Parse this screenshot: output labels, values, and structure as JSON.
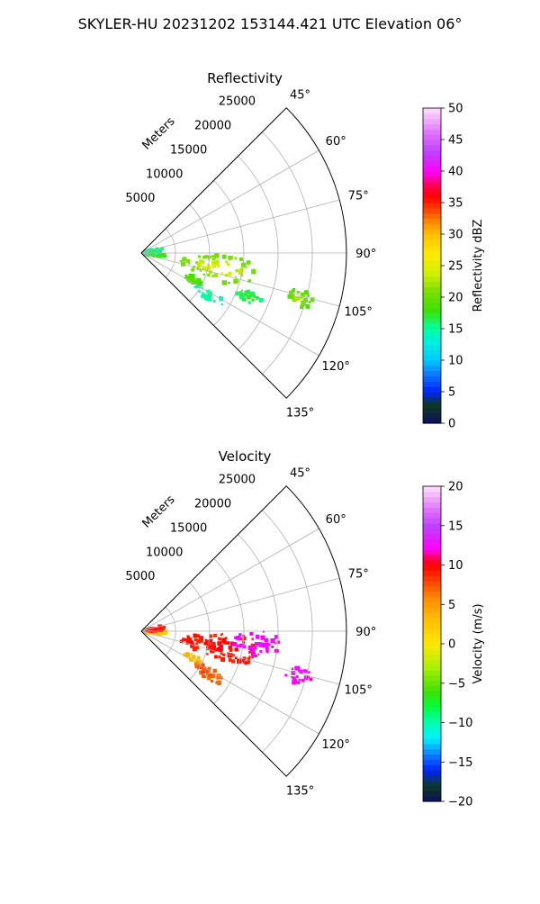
{
  "title": "SKYLER-HU  20231202  153144.421 UTC Elevation 06°",
  "chart_data": [
    {
      "type": "heatmap",
      "projection": "polar-sector",
      "title": "Reflectivity",
      "radial_axis_label": "Meters",
      "radial_ticks": [
        5000,
        10000,
        15000,
        20000,
        25000
      ],
      "radial_tick_labels": [
        "5000",
        "10000",
        "15000",
        "20000",
        "25000"
      ],
      "radial_range": [
        0,
        30000
      ],
      "angle_range_deg": [
        45,
        135
      ],
      "angle_ticks_deg": [
        45,
        60,
        75,
        90,
        105,
        120,
        135
      ],
      "angle_tick_labels": [
        "45°",
        "60°",
        "75°",
        "90°",
        "105°",
        "120°",
        "135°"
      ],
      "grid": true,
      "colorbar": {
        "label": "Reflectivity dBZ",
        "range": [
          0,
          50
        ],
        "ticks": [
          0,
          5,
          10,
          15,
          20,
          25,
          30,
          35,
          40,
          45,
          50
        ],
        "tick_labels": [
          "0",
          "5",
          "10",
          "15",
          "20",
          "25",
          "30",
          "35",
          "40",
          "45",
          "50"
        ],
        "colormap": [
          [
            0,
            "#0b0f5c"
          ],
          [
            3,
            "#0d3a22"
          ],
          [
            5,
            "#0022ff"
          ],
          [
            8,
            "#0f7fff"
          ],
          [
            10,
            "#00c8ff"
          ],
          [
            13,
            "#00f0e0"
          ],
          [
            15,
            "#00ffa0"
          ],
          [
            18,
            "#40e000"
          ],
          [
            21,
            "#7adf00"
          ],
          [
            24,
            "#d8f000"
          ],
          [
            27,
            "#ffe800"
          ],
          [
            30,
            "#ffc000"
          ],
          [
            32,
            "#ff8800"
          ],
          [
            34,
            "#ff4000"
          ],
          [
            36,
            "#ff0000"
          ],
          [
            38,
            "#ff0060"
          ],
          [
            40,
            "#ff00ff"
          ],
          [
            43,
            "#c040ff"
          ],
          [
            46,
            "#e070ff"
          ],
          [
            50,
            "#ffe0ff"
          ]
        ]
      },
      "echo_regions": [
        {
          "az_deg": 101,
          "range_m": 11500,
          "az_halfwidth_deg": 9,
          "range_halfwidth_m": 6000,
          "value": 20,
          "core_value": 26
        },
        {
          "az_deg": 106,
          "range_m": 24000,
          "az_halfwidth_deg": 3,
          "range_halfwidth_m": 2000,
          "value": 19,
          "core_value": 23
        },
        {
          "az_deg": 117,
          "range_m": 8500,
          "az_halfwidth_deg": 3,
          "range_halfwidth_m": 1500,
          "value": 18,
          "core_value": 20
        },
        {
          "az_deg": 95,
          "range_m": 2000,
          "az_halfwidth_deg": 8,
          "range_halfwidth_m": 1800,
          "value": 17,
          "core_value": 20
        },
        {
          "az_deg": 82,
          "range_m": 2000,
          "az_halfwidth_deg": 7,
          "range_halfwidth_m": 1500,
          "value": 15,
          "core_value": 18
        },
        {
          "az_deg": 122,
          "range_m": 11500,
          "az_halfwidth_deg": 4,
          "range_halfwidth_m": 2500,
          "value": 14,
          "core_value": 16
        },
        {
          "az_deg": 112,
          "range_m": 17000,
          "az_halfwidth_deg": 3,
          "range_halfwidth_m": 2000,
          "value": 16,
          "core_value": 18
        }
      ]
    },
    {
      "type": "heatmap",
      "projection": "polar-sector",
      "title": "Velocity",
      "radial_axis_label": "Meters",
      "radial_ticks": [
        5000,
        10000,
        15000,
        20000,
        25000
      ],
      "radial_tick_labels": [
        "5000",
        "10000",
        "15000",
        "20000",
        "25000"
      ],
      "radial_range": [
        0,
        30000
      ],
      "angle_range_deg": [
        45,
        135
      ],
      "angle_ticks_deg": [
        45,
        60,
        75,
        90,
        105,
        120,
        135
      ],
      "angle_tick_labels": [
        "45°",
        "60°",
        "75°",
        "90°",
        "105°",
        "120°",
        "135°"
      ],
      "grid": true,
      "colorbar": {
        "label": "Velocity (m/s)",
        "range": [
          -20,
          20
        ],
        "ticks": [
          -20,
          -15,
          -10,
          -5,
          0,
          5,
          10,
          15,
          20
        ],
        "tick_labels": [
          "−20",
          "−15",
          "−10",
          "−5",
          "0",
          "5",
          "10",
          "15",
          "20"
        ],
        "colormap": [
          [
            -20,
            "#0b0f5c"
          ],
          [
            -18,
            "#0d3a22"
          ],
          [
            -16,
            "#0022ff"
          ],
          [
            -14,
            "#0f7fff"
          ],
          [
            -12,
            "#00f0ff"
          ],
          [
            -10,
            "#00ffb0"
          ],
          [
            -8,
            "#00ff40"
          ],
          [
            -6,
            "#40e000"
          ],
          [
            -3,
            "#a8f000"
          ],
          [
            0,
            "#ffe800"
          ],
          [
            3,
            "#ffc000"
          ],
          [
            6,
            "#ff8800"
          ],
          [
            8,
            "#ff4000"
          ],
          [
            10,
            "#ff0000"
          ],
          [
            11,
            "#ff0060"
          ],
          [
            12,
            "#ff00ff"
          ],
          [
            15,
            "#c040ff"
          ],
          [
            17,
            "#e070ff"
          ],
          [
            20,
            "#ffe0ff"
          ]
        ]
      },
      "echo_regions": [
        {
          "az_deg": 101,
          "range_m": 11500,
          "az_halfwidth_deg": 9,
          "range_halfwidth_m": 6000,
          "value": 9,
          "core_value": 10
        },
        {
          "az_deg": 96,
          "range_m": 17000,
          "az_halfwidth_deg": 6,
          "range_halfwidth_m": 4000,
          "value": 12,
          "core_value": 13
        },
        {
          "az_deg": 106,
          "range_m": 24000,
          "az_halfwidth_deg": 3,
          "range_halfwidth_m": 2000,
          "value": 12,
          "core_value": 13
        },
        {
          "az_deg": 117,
          "range_m": 8500,
          "az_halfwidth_deg": 3,
          "range_halfwidth_m": 1500,
          "value": 3,
          "core_value": 4
        },
        {
          "az_deg": 95,
          "range_m": 2000,
          "az_halfwidth_deg": 8,
          "range_halfwidth_m": 1800,
          "value": 2,
          "core_value": 3
        },
        {
          "az_deg": 82,
          "range_m": 2000,
          "az_halfwidth_deg": 7,
          "range_halfwidth_m": 1500,
          "value": 9,
          "core_value": 10
        },
        {
          "az_deg": 122,
          "range_m": 11500,
          "az_halfwidth_deg": 4,
          "range_halfwidth_m": 2500,
          "value": 7,
          "core_value": 8
        }
      ]
    }
  ]
}
